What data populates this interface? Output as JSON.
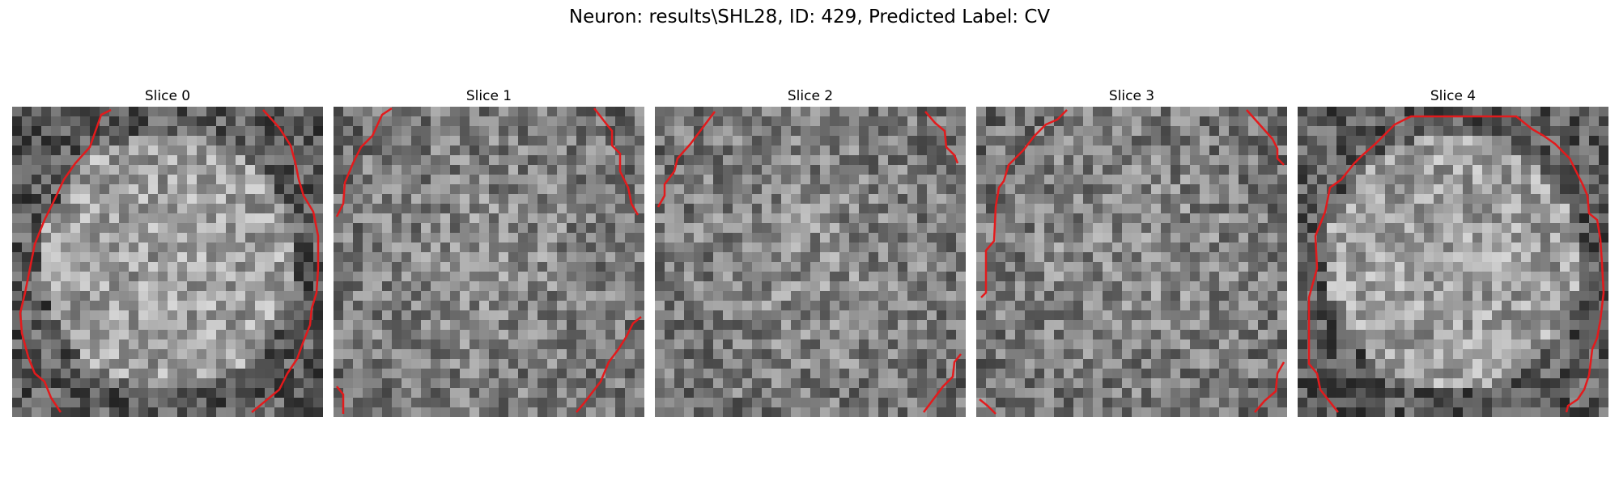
{
  "figure": {
    "title": "Neuron: results\\SHL28, ID: 429, Predicted Label: CV"
  },
  "colors": {
    "contour": "#e31a1c",
    "background": "#ffffff"
  },
  "panels": [
    {
      "title": "Slice 0"
    },
    {
      "title": "Slice 1"
    },
    {
      "title": "Slice 2"
    },
    {
      "title": "Slice 3"
    },
    {
      "title": "Slice 4"
    }
  ]
}
